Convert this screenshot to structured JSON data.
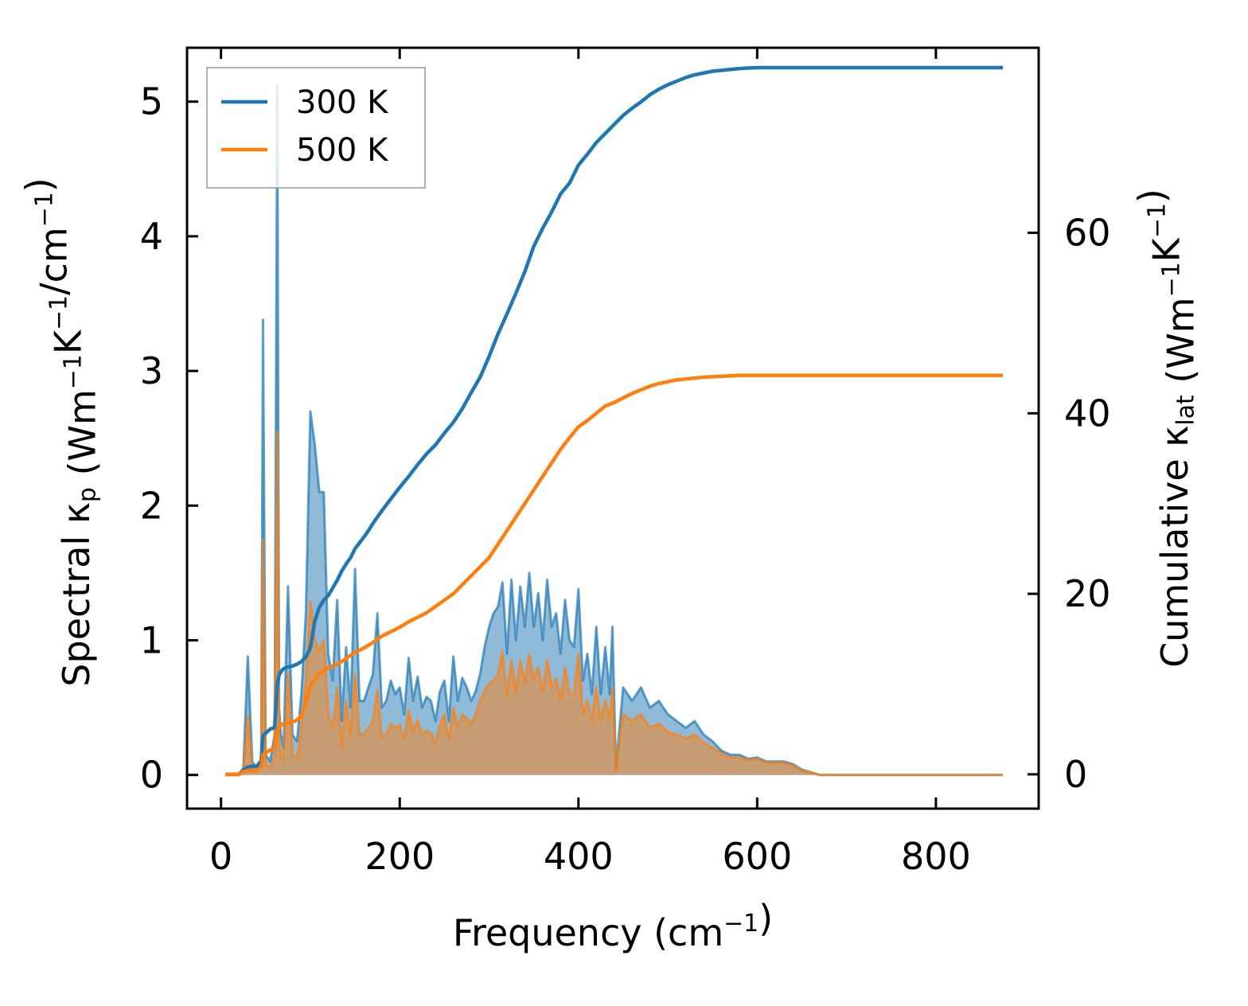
{
  "chart_data": {
    "type": "line",
    "xlabel": "Frequency (cm⁻¹)",
    "ylabel_left": "Spectral κₚ (Wm⁻¹K⁻¹/cm⁻¹)",
    "ylabel_right": "Cumulative κ_lat (Wm⁻¹K⁻¹)",
    "xlim": [
      -38,
      915
    ],
    "ylim_left": [
      -0.25,
      5.4
    ],
    "ylim_right": [
      -3.8,
      80.5
    ],
    "x_ticks": [
      "0",
      "200",
      "400",
      "600",
      "800"
    ],
    "y_left_ticks": [
      "0",
      "1",
      "2",
      "3",
      "4",
      "5"
    ],
    "y_right_ticks": [
      "0",
      "20",
      "40",
      "60"
    ],
    "legend": [
      {
        "label": "300 K",
        "color": "#1f77b4"
      },
      {
        "label": "500 K",
        "color": "#ff7f0e"
      }
    ],
    "spectral": {
      "x": [
        5,
        20,
        25,
        30,
        35,
        40,
        45,
        47,
        50,
        55,
        60,
        63,
        65,
        67,
        70,
        75,
        80,
        85,
        90,
        95,
        100,
        105,
        110,
        115,
        120,
        125,
        130,
        135,
        140,
        145,
        150,
        155,
        160,
        165,
        170,
        175,
        180,
        185,
        190,
        195,
        200,
        205,
        210,
        215,
        220,
        225,
        230,
        235,
        240,
        245,
        250,
        255,
        260,
        265,
        270,
        275,
        280,
        285,
        290,
        295,
        300,
        305,
        310,
        315,
        320,
        325,
        330,
        335,
        340,
        345,
        350,
        355,
        360,
        365,
        370,
        375,
        380,
        385,
        390,
        395,
        400,
        405,
        410,
        415,
        420,
        425,
        430,
        435,
        438,
        442,
        450,
        460,
        470,
        480,
        490,
        500,
        510,
        520,
        530,
        540,
        550,
        560,
        570,
        580,
        590,
        600,
        610,
        620,
        630,
        640,
        650,
        660,
        670,
        680,
        700,
        750,
        800,
        875
      ],
      "series": [
        {
          "name": "300 K",
          "color": "#1f77b4",
          "values": [
            0,
            0,
            0.05,
            0.88,
            0.1,
            0.05,
            0.1,
            3.38,
            0.15,
            0.1,
            0.3,
            5.12,
            0.5,
            0.3,
            0.2,
            1.4,
            0.3,
            0.25,
            0.6,
            1.2,
            2.7,
            2.45,
            2.1,
            2.1,
            0.9,
            0.7,
            1.3,
            0.4,
            0.95,
            0.5,
            1.53,
            0.55,
            0.55,
            0.65,
            0.75,
            1.2,
            0.5,
            0.55,
            0.7,
            0.6,
            0.65,
            0.45,
            0.87,
            0.55,
            0.73,
            0.5,
            0.58,
            0.55,
            0.4,
            0.62,
            0.7,
            0.4,
            0.88,
            0.55,
            0.72,
            0.65,
            0.55,
            0.62,
            0.75,
            0.95,
            1.1,
            1.2,
            1.25,
            1.43,
            0.9,
            1.45,
            1.0,
            1.4,
            1.1,
            1.5,
            1.1,
            1.35,
            1.0,
            1.45,
            1.1,
            1.2,
            0.9,
            1.3,
            1.0,
            0.95,
            1.38,
            0.7,
            0.9,
            0.6,
            1.1,
            0.6,
            0.95,
            0.6,
            1.1,
            0.05,
            0.65,
            0.55,
            0.65,
            0.5,
            0.55,
            0.45,
            0.4,
            0.35,
            0.4,
            0.3,
            0.25,
            0.18,
            0.15,
            0.15,
            0.12,
            0.13,
            0.1,
            0.1,
            0.1,
            0.08,
            0.04,
            0.02,
            0.0,
            0,
            0,
            0,
            0,
            0
          ]
        },
        {
          "name": "500 K",
          "color": "#ff7f0e",
          "values": [
            0,
            0,
            0.03,
            0.44,
            0.05,
            0.03,
            0.05,
            1.75,
            0.08,
            0.05,
            0.15,
            2.55,
            0.25,
            0.15,
            0.1,
            0.75,
            0.15,
            0.12,
            0.35,
            0.7,
            1.29,
            1.0,
            0.92,
            1.0,
            0.45,
            0.35,
            0.65,
            0.2,
            0.55,
            0.3,
            0.75,
            0.3,
            0.3,
            0.35,
            0.4,
            0.63,
            0.27,
            0.3,
            0.38,
            0.35,
            0.37,
            0.26,
            0.48,
            0.32,
            0.41,
            0.3,
            0.33,
            0.31,
            0.23,
            0.37,
            0.45,
            0.26,
            0.5,
            0.35,
            0.45,
            0.42,
            0.38,
            0.45,
            0.55,
            0.62,
            0.68,
            0.7,
            0.75,
            0.92,
            0.58,
            0.85,
            0.62,
            0.85,
            0.68,
            0.9,
            0.7,
            0.8,
            0.62,
            0.85,
            0.65,
            0.72,
            0.55,
            0.8,
            0.6,
            0.6,
            0.9,
            0.45,
            0.55,
            0.4,
            0.65,
            0.4,
            0.55,
            0.42,
            0.65,
            0.03,
            0.45,
            0.4,
            0.45,
            0.35,
            0.38,
            0.32,
            0.3,
            0.27,
            0.3,
            0.24,
            0.2,
            0.16,
            0.13,
            0.13,
            0.11,
            0.12,
            0.09,
            0.09,
            0.09,
            0.07,
            0.03,
            0.02,
            0.0,
            0,
            0,
            0,
            0,
            0
          ]
        }
      ]
    },
    "cumulative": {
      "series": [
        {
          "name": "300 K",
          "color": "#1f77b4",
          "x": [
            5,
            20,
            25,
            30,
            35,
            40,
            45,
            47,
            55,
            60,
            63,
            65,
            68,
            70,
            75,
            80,
            85,
            90,
            95,
            100,
            105,
            110,
            115,
            120,
            130,
            135,
            140,
            145,
            150,
            160,
            165,
            170,
            175,
            180,
            190,
            200,
            210,
            220,
            230,
            240,
            250,
            260,
            270,
            280,
            290,
            300,
            310,
            320,
            330,
            340,
            350,
            360,
            370,
            380,
            390,
            400,
            410,
            420,
            430,
            440,
            450,
            460,
            470,
            480,
            490,
            500,
            510,
            520,
            530,
            540,
            550,
            560,
            570,
            580,
            590,
            600,
            610,
            620,
            630,
            640,
            650,
            660,
            670,
            680,
            700,
            750,
            800,
            875
          ],
          "values": [
            0,
            0,
            0.5,
            0.8,
            0.9,
            0.9,
            1.5,
            4.3,
            5.0,
            5.2,
            10.0,
            11.0,
            11.5,
            11.7,
            11.9,
            12.0,
            12.2,
            12.5,
            13.0,
            14.0,
            17.0,
            18.5,
            19.3,
            19.8,
            21.5,
            22.5,
            23.3,
            24.0,
            25.0,
            26.3,
            27.0,
            27.8,
            28.5,
            29.2,
            30.5,
            31.8,
            33.0,
            34.3,
            35.5,
            36.5,
            37.8,
            39.0,
            40.5,
            42.3,
            44.0,
            46.3,
            48.8,
            51.0,
            53.3,
            55.7,
            58.5,
            60.5,
            62.3,
            64.3,
            65.5,
            67.5,
            68.7,
            70.0,
            71.0,
            72.0,
            73.0,
            73.8,
            74.5,
            75.3,
            75.9,
            76.4,
            76.8,
            77.2,
            77.5,
            77.7,
            77.9,
            78.0,
            78.1,
            78.2,
            78.25,
            78.3,
            78.3,
            78.3,
            78.3,
            78.3,
            78.3,
            78.3,
            78.3,
            78.3,
            78.3,
            78.3,
            78.3,
            78.3
          ]
        },
        {
          "name": "500 K",
          "color": "#ff7f0e",
          "x": [
            5,
            20,
            25,
            30,
            35,
            40,
            45,
            47,
            55,
            60,
            63,
            65,
            68,
            70,
            75,
            80,
            85,
            90,
            95,
            100,
            105,
            110,
            115,
            120,
            130,
            135,
            140,
            145,
            150,
            160,
            165,
            170,
            175,
            180,
            190,
            200,
            210,
            220,
            230,
            240,
            250,
            260,
            270,
            280,
            290,
            300,
            310,
            320,
            330,
            340,
            350,
            360,
            370,
            380,
            390,
            400,
            410,
            420,
            430,
            440,
            450,
            460,
            470,
            480,
            490,
            500,
            510,
            520,
            530,
            540,
            550,
            560,
            570,
            580,
            590,
            600,
            610,
            620,
            630,
            640,
            650,
            660,
            670,
            680,
            700,
            750,
            800,
            875
          ],
          "values": [
            0,
            0,
            0.3,
            0.4,
            0.45,
            0.45,
            0.8,
            2.2,
            2.7,
            2.9,
            4.8,
            5.3,
            5.5,
            5.6,
            5.7,
            5.8,
            6.0,
            6.5,
            8.0,
            9.8,
            10.5,
            11.2,
            11.5,
            11.8,
            12.2,
            12.5,
            12.8,
            13.2,
            13.5,
            14.0,
            14.3,
            14.6,
            15.0,
            15.3,
            15.8,
            16.3,
            16.9,
            17.4,
            17.9,
            18.6,
            19.3,
            20.0,
            21.0,
            22.0,
            23.0,
            24.0,
            25.5,
            27.0,
            28.5,
            30.0,
            31.5,
            33.0,
            34.5,
            36.0,
            37.3,
            38.5,
            39.2,
            40.0,
            40.8,
            41.2,
            41.7,
            42.2,
            42.6,
            43.0,
            43.3,
            43.5,
            43.7,
            43.8,
            43.9,
            44.0,
            44.05,
            44.1,
            44.15,
            44.2,
            44.2,
            44.2,
            44.2,
            44.2,
            44.2,
            44.2,
            44.2,
            44.2,
            44.2,
            44.2,
            44.2,
            44.2,
            44.2,
            44.2
          ]
        }
      ]
    }
  }
}
